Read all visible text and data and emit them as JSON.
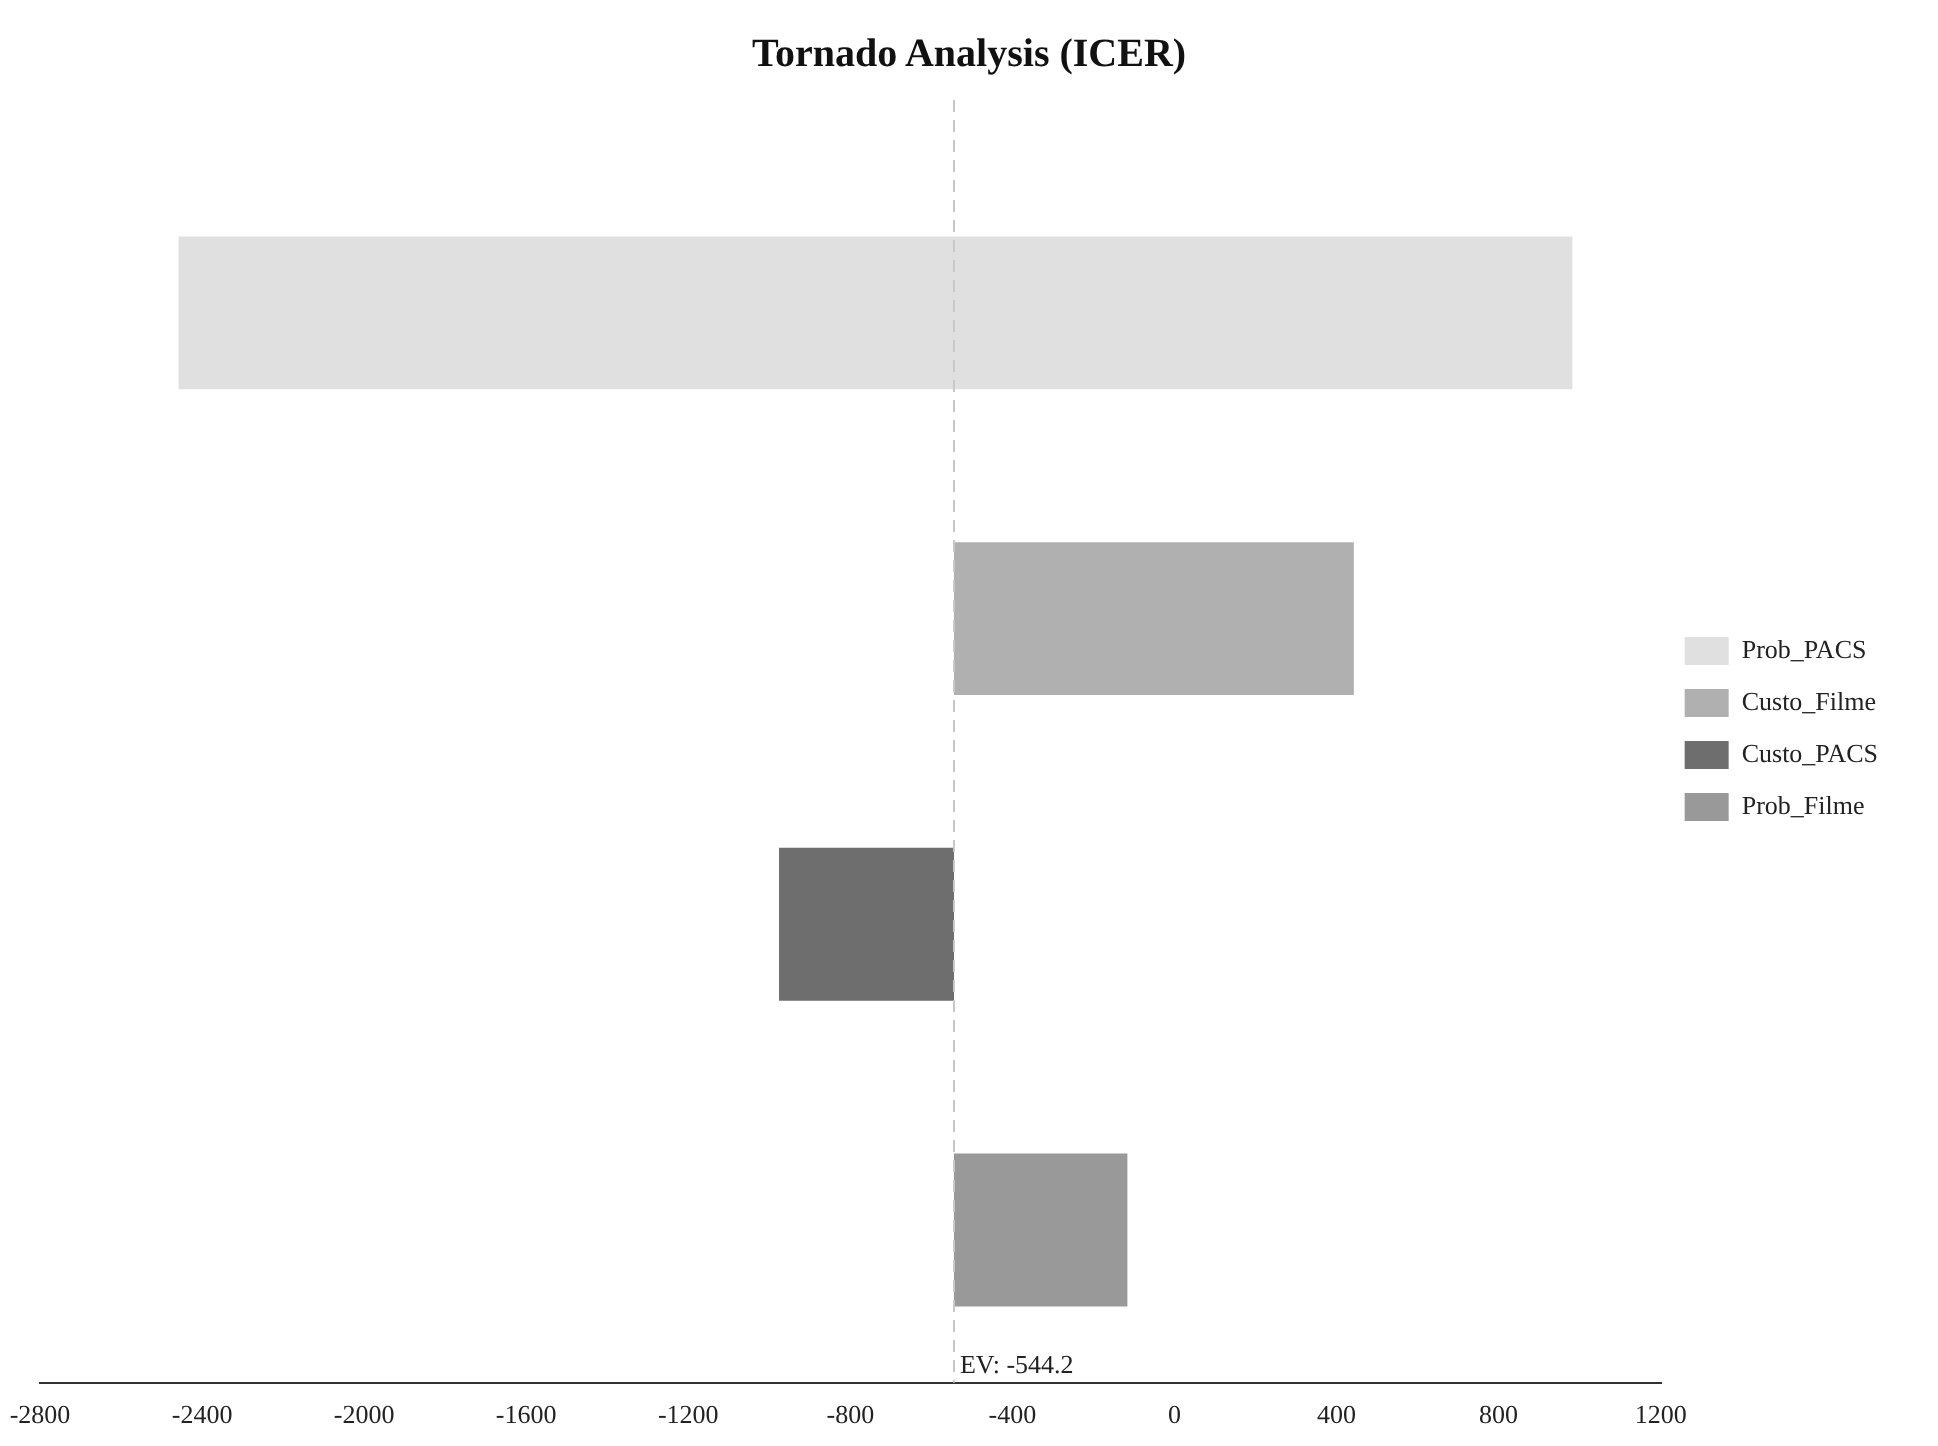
{
  "chart_data": {
    "type": "bar",
    "title": "Tornado Analysis (ICER)",
    "orientation": "horizontal",
    "categories": [
      null,
      null,
      null,
      null
    ],
    "series": [
      {
        "name": "Prob_PACS",
        "color": "#e0e0e0",
        "values": [
          3440,
          null,
          null,
          null
        ],
        "base": [
          -2458,
          null,
          null,
          null
        ]
      },
      {
        "name": "Custo_Filme",
        "color": "#b0b0b0",
        "values": [
          null,
          987,
          null,
          null
        ],
        "base": [
          null,
          -544.2,
          null,
          null
        ]
      },
      {
        "name": "Custo_PACS",
        "color": "#6e6e6e",
        "values": [
          null,
          null,
          432,
          null
        ],
        "base": [
          null,
          null,
          -976,
          null
        ]
      },
      {
        "name": "Prob_Filme",
        "color": "#999999",
        "values": [
          null,
          null,
          null,
          428
        ],
        "base": [
          null,
          null,
          null,
          -544.2
        ]
      }
    ],
    "xlim": [
      -2800,
      1200
    ],
    "xticks": [
      -2800,
      -2400,
      -2000,
      -1600,
      -1200,
      -800,
      -400,
      0,
      400,
      800,
      1200
    ],
    "ref_lines": [
      {
        "axis": "x",
        "value": -544.2,
        "label": "EV: -544.2",
        "color": "#c8c8c8",
        "line_style": "dashed"
      }
    ],
    "grid": false,
    "legend": "right",
    "tick_labels": "x"
  }
}
